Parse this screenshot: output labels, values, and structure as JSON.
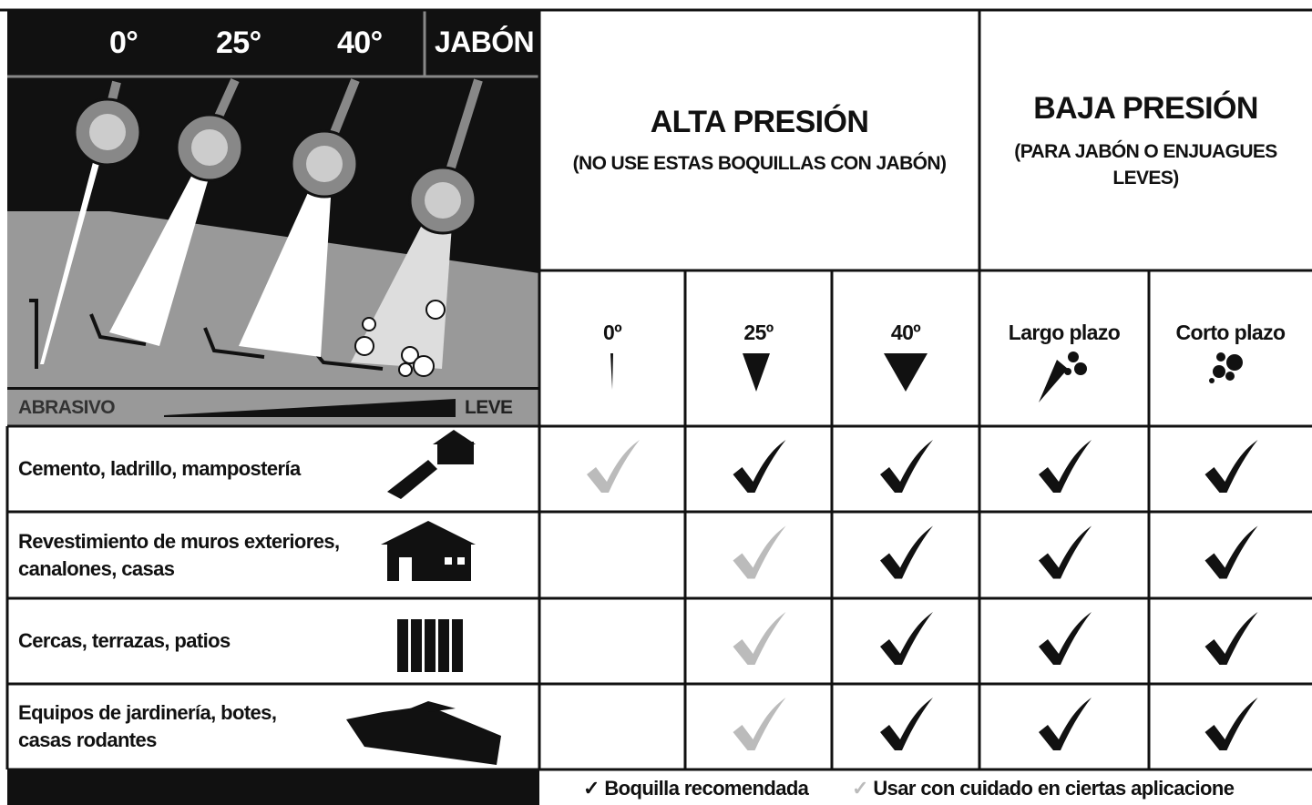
{
  "illustration": {
    "angles": [
      "0°",
      "25°",
      "40°"
    ],
    "soap": "JABÓN",
    "scale": {
      "start": "ABRASIVO",
      "end": "LEVE"
    }
  },
  "groups": [
    {
      "title": "ALTA PRESIÓN",
      "subtitle": "(NO USE ESTAS BOQUILLAS CON JABÓN)"
    },
    {
      "title": "BAJA PRESIÓN",
      "subtitle": "(PARA JABÓN O ENJUAGUES LEVES)"
    }
  ],
  "columns": [
    "0º",
    "25º",
    "40º",
    "Largo plazo",
    "Corto plazo"
  ],
  "rows": [
    {
      "label": "Cemento, ladrillo, mampostería",
      "marks": [
        "caution",
        "recommended",
        "recommended",
        "recommended",
        "recommended"
      ]
    },
    {
      "label": "Revestimiento de muros exteriores, canalones, casas",
      "marks": [
        null,
        "caution",
        "recommended",
        "recommended",
        "recommended"
      ]
    },
    {
      "label": "Cercas, terrazas, patios",
      "marks": [
        null,
        "caution",
        "recommended",
        "recommended",
        "recommended"
      ]
    },
    {
      "label": "Equipos de jardinería, botes, casas rodantes",
      "marks": [
        null,
        "caution",
        "recommended",
        "recommended",
        "recommended"
      ]
    }
  ],
  "legend": {
    "recommended": "Boquilla recomendada",
    "caution": "Usar con cuidado en ciertas aplicacione"
  },
  "mark_colors": {
    "recommended": "#111111",
    "caution": "#bbbbbb"
  }
}
